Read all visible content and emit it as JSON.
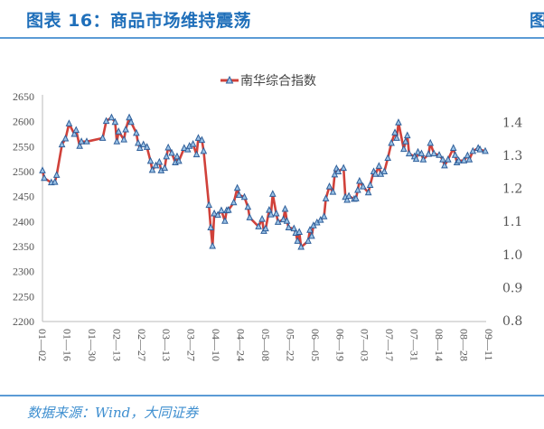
{
  "header": {
    "title": "图表 16：商品市场维持震荡",
    "next_panel_title_fragment": "图"
  },
  "footer": {
    "source": "数据来源：Wind，大同证券"
  },
  "colors": {
    "title": "#1f6fba",
    "rule": "#5b9bd5",
    "line": "#d0413a",
    "marker": "#3a78b8"
  },
  "chart_data": {
    "type": "line",
    "title": "",
    "legend": {
      "position": "top-center",
      "entries": [
        "南华综合指数"
      ]
    },
    "series": [
      {
        "name": "南华综合指数",
        "marker": "triangle",
        "x": [
          "01-02",
          "01-03",
          "01-07",
          "01-09",
          "01-10",
          "01-13",
          "01-15",
          "01-17",
          "01-20",
          "01-21",
          "01-23",
          "01-24",
          "01-27",
          "02-05",
          "02-07",
          "02-10",
          "02-12",
          "02-13",
          "02-14",
          "02-17",
          "02-18",
          "02-20",
          "02-21",
          "02-24",
          "02-25",
          "02-26",
          "02-28",
          "03-02",
          "03-04",
          "03-05",
          "03-07",
          "03-09",
          "03-10",
          "03-12",
          "03-13",
          "03-14",
          "03-16",
          "03-18",
          "03-19",
          "03-20",
          "03-23",
          "03-25",
          "03-26",
          "03-28",
          "03-30",
          "03-31",
          "04-02",
          "04-03",
          "04-06",
          "04-07",
          "04-08",
          "04-09",
          "04-11",
          "04-13",
          "04-15",
          "04-16",
          "04-17",
          "04-20",
          "04-22",
          "04-23",
          "04-26",
          "04-28",
          "04-29",
          "05-04",
          "05-06",
          "05-07",
          "05-08",
          "05-10",
          "05-11",
          "05-12",
          "05-14",
          "05-15",
          "05-18",
          "05-19",
          "05-20",
          "05-21",
          "05-24",
          "05-25",
          "05-26",
          "05-27",
          "05-28",
          "06-01",
          "06-02",
          "06-03",
          "06-04",
          "06-06",
          "06-08",
          "06-10",
          "06-11",
          "06-13",
          "06-15",
          "06-16",
          "06-17",
          "06-18",
          "06-21",
          "06-22",
          "06-23",
          "06-24",
          "06-27",
          "06-28",
          "06-29",
          "06-30",
          "07-02",
          "07-05",
          "07-06",
          "07-08",
          "07-09",
          "07-11",
          "07-12",
          "07-14",
          "07-16",
          "07-18",
          "07-20",
          "07-21",
          "07-22",
          "07-25",
          "07-26",
          "07-27",
          "07-28",
          "07-31",
          "08-01",
          "08-02",
          "08-04",
          "08-05",
          "08-08",
          "08-09",
          "08-11",
          "08-14",
          "08-16",
          "08-17",
          "08-19",
          "08-22",
          "08-23",
          "08-24",
          "08-25",
          "08-28",
          "08-30",
          "08-31",
          "09-02",
          "09-05",
          "09-06",
          "09-09"
        ],
        "values": [
          2502,
          2487,
          2478,
          2479,
          2493,
          2554,
          2566,
          2596,
          2575,
          2583,
          2551,
          2560,
          2560,
          2567,
          2601,
          2608,
          2599,
          2560,
          2580,
          2564,
          2584,
          2608,
          2599,
          2577,
          2557,
          2547,
          2554,
          2549,
          2521,
          2503,
          2512,
          2519,
          2502,
          2507,
          2530,
          2548,
          2537,
          2518,
          2530,
          2521,
          2547,
          2544,
          2551,
          2555,
          2534,
          2567,
          2563,
          2541,
          2433,
          2388,
          2351,
          2416,
          2413,
          2422,
          2401,
          2422,
          2423,
          2438,
          2467,
          2453,
          2449,
          2429,
          2408,
          2390,
          2405,
          2381,
          2386,
          2423,
          2414,
          2455,
          2416,
          2399,
          2404,
          2425,
          2401,
          2388,
          2386,
          2377,
          2361,
          2379,
          2349,
          2361,
          2383,
          2371,
          2392,
          2398,
          2403,
          2410,
          2446,
          2470,
          2459,
          2494,
          2506,
          2500,
          2507,
          2449,
          2443,
          2451,
          2445,
          2446,
          2463,
          2481,
          2470,
          2458,
          2473,
          2500,
          2495,
          2511,
          2495,
          2500,
          2527,
          2557,
          2578,
          2567,
          2598,
          2545,
          2560,
          2572,
          2536,
          2530,
          2525,
          2539,
          2536,
          2524,
          2535,
          2557,
          2536,
          2533,
          2524,
          2512,
          2524,
          2547,
          2533,
          2518,
          2522,
          2522,
          2532,
          2524,
          2541,
          2547,
          2544,
          2541
        ]
      }
    ],
    "x_ticks": [
      "01-02",
      "01-16",
      "01-30",
      "02-13",
      "02-27",
      "03-13",
      "03-27",
      "04-10",
      "04-24",
      "05-08",
      "05-22",
      "06-05",
      "06-19",
      "07-03",
      "07-17",
      "07-31",
      "08-14",
      "08-28",
      "09-11"
    ],
    "y_left": {
      "ticks": [
        "2650",
        "2600",
        "2550",
        "2500",
        "2450",
        "2400",
        "2350",
        "2300",
        "2250",
        "2200"
      ],
      "ylim": [
        2200,
        2650
      ]
    },
    "y_right": {
      "ticks": [
        "1.4",
        "1.3",
        "1.2",
        "1.1",
        "1.0",
        "0.9",
        "0.8"
      ],
      "ylim": [
        0.8,
        1.45
      ]
    },
    "grid": false,
    "xlabel": "",
    "ylabel": ""
  }
}
